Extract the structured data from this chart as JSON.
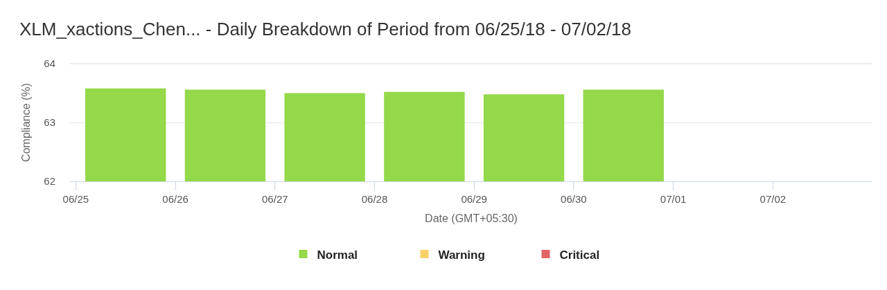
{
  "chart_data": {
    "type": "bar",
    "title": "XLM_xactions_Chen... - Daily Breakdown of Period from 06/25/18 - 07/02/18",
    "xlabel": "Date (GMT+05:30)",
    "ylabel": "Compliance (%)",
    "x": [
      "--06-25T12:00",
      "--06-26T12:00",
      "--06-27T12:00",
      "--06-28T12:00",
      "--06-29T12:00",
      "--06-30T12:00"
    ],
    "series": [
      {
        "name": "Normal",
        "color": "#94d94a",
        "values": [
          63.58,
          63.56,
          63.5,
          63.52,
          63.48,
          63.56
        ]
      },
      {
        "name": "Warning",
        "color": "#f8d068",
        "values": [
          null,
          null,
          null,
          null,
          null,
          null
        ]
      },
      {
        "name": "Critical",
        "color": "#e06666",
        "values": [
          null,
          null,
          null,
          null,
          null,
          null
        ]
      }
    ],
    "xlim": [
      "--06-24T22:36",
      "--07-03"
    ],
    "xticks": [
      {
        "value": "--06-25",
        "label": "06/25"
      },
      {
        "value": "--06-26",
        "label": "06/26"
      },
      {
        "value": "--06-27",
        "label": "06/27"
      },
      {
        "value": "--06-28",
        "label": "06/28"
      },
      {
        "value": "--06-29",
        "label": "06/29"
      },
      {
        "value": "--06-30",
        "label": "06/30"
      },
      {
        "value": "--07-01",
        "label": "07/01"
      },
      {
        "value": "--07-02",
        "label": "07/02"
      }
    ],
    "ylim": [
      62,
      64
    ],
    "yticks": [
      62,
      63,
      64
    ],
    "grid": "y",
    "legend": "bottom"
  }
}
